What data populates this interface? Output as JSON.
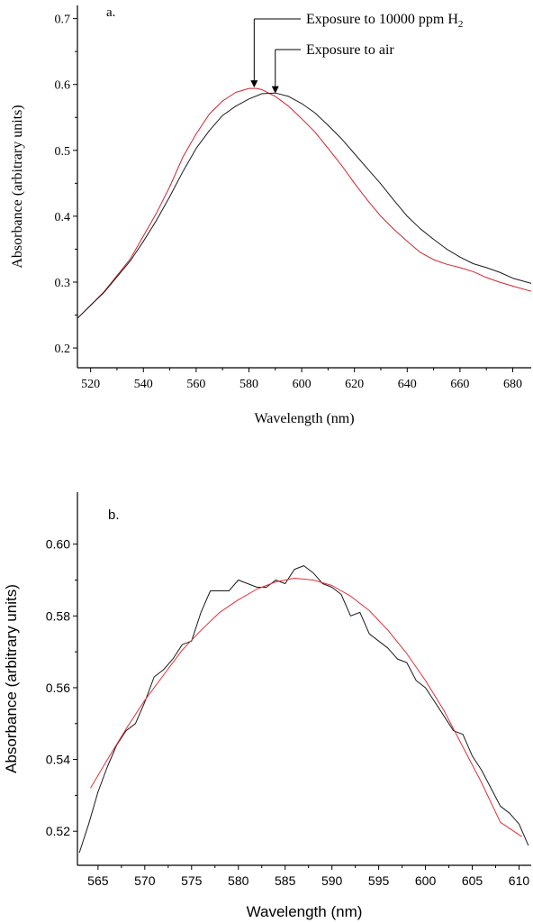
{
  "chart_data": [
    {
      "type": "line",
      "panel_label": "a.",
      "xlabel": "Wavelength (nm)",
      "ylabel": "Absorbance (arbitrary units)",
      "xlim": [
        515,
        687
      ],
      "ylim": [
        0.17,
        0.72
      ],
      "xticks": [
        520,
        540,
        560,
        580,
        600,
        620,
        640,
        660,
        680
      ],
      "yticks": [
        0.2,
        0.3,
        0.4,
        0.5,
        0.6,
        0.7
      ],
      "grid": false,
      "annotations": [
        {
          "text": "Exposure to 10000 ppm H",
          "subscript": "2",
          "arrow_x": 582,
          "arrow_y": 0.594
        },
        {
          "text": "Exposure to air",
          "arrow_x": 590,
          "arrow_y": 0.585
        }
      ],
      "series": [
        {
          "color": "#d0242e",
          "x": [
            515,
            520,
            525,
            530,
            535,
            540,
            545,
            550,
            555,
            560,
            565,
            570,
            575,
            580,
            583,
            585,
            590,
            595,
            600,
            605,
            610,
            615,
            620,
            625,
            630,
            635,
            640,
            645,
            650,
            655,
            660,
            665,
            670,
            675,
            680,
            687
          ],
          "y": [
            0.245,
            0.265,
            0.285,
            0.31,
            0.335,
            0.37,
            0.405,
            0.445,
            0.49,
            0.525,
            0.555,
            0.575,
            0.588,
            0.594,
            0.594,
            0.592,
            0.582,
            0.567,
            0.548,
            0.528,
            0.503,
            0.478,
            0.45,
            0.424,
            0.4,
            0.38,
            0.362,
            0.345,
            0.334,
            0.327,
            0.322,
            0.316,
            0.307,
            0.3,
            0.294,
            0.286
          ]
        },
        {
          "color": "#1a1a1a",
          "x": [
            515,
            520,
            525,
            530,
            535,
            540,
            545,
            550,
            555,
            560,
            565,
            570,
            575,
            580,
            585,
            590,
            595,
            600,
            605,
            610,
            615,
            620,
            625,
            630,
            635,
            640,
            645,
            650,
            655,
            660,
            665,
            670,
            675,
            680,
            687
          ],
          "y": [
            0.245,
            0.265,
            0.284,
            0.308,
            0.332,
            0.362,
            0.394,
            0.43,
            0.468,
            0.503,
            0.53,
            0.553,
            0.567,
            0.578,
            0.586,
            0.587,
            0.582,
            0.571,
            0.557,
            0.538,
            0.518,
            0.495,
            0.472,
            0.449,
            0.424,
            0.4,
            0.381,
            0.365,
            0.35,
            0.338,
            0.328,
            0.322,
            0.315,
            0.306,
            0.298
          ]
        }
      ]
    },
    {
      "type": "line",
      "panel_label": "b.",
      "xlabel": "Wavelength (nm)",
      "ylabel": "Absorbance (arbitrary units)",
      "xlim": [
        562.8,
        611.3
      ],
      "ylim": [
        0.5105,
        0.6145
      ],
      "xticks": [
        565,
        570,
        575,
        580,
        585,
        590,
        595,
        600,
        605,
        610
      ],
      "yticks": [
        0.52,
        0.54,
        0.56,
        0.58,
        0.6
      ],
      "grid": false,
      "series": [
        {
          "color": "#1a1a1a",
          "x": [
            563,
            564,
            565,
            566,
            567,
            568,
            569,
            570,
            571,
            572,
            573,
            574,
            575,
            576,
            577,
            578,
            579,
            580,
            581,
            582,
            583,
            584,
            585,
            586,
            587,
            588,
            589,
            590,
            591,
            592,
            593,
            594,
            595,
            596,
            597,
            598,
            599,
            600,
            601,
            602,
            603,
            604,
            605,
            606,
            607,
            608,
            609,
            610,
            611
          ],
          "y": [
            0.514,
            0.522,
            0.531,
            0.538,
            0.544,
            0.548,
            0.55,
            0.556,
            0.563,
            0.565,
            0.568,
            0.572,
            0.573,
            0.581,
            0.587,
            0.587,
            0.587,
            0.59,
            0.589,
            0.588,
            0.588,
            0.59,
            0.589,
            0.593,
            0.594,
            0.592,
            0.589,
            0.588,
            0.586,
            0.58,
            0.581,
            0.575,
            0.573,
            0.571,
            0.568,
            0.567,
            0.562,
            0.56,
            0.556,
            0.552,
            0.548,
            0.547,
            0.541,
            0.537,
            0.532,
            0.527,
            0.525,
            0.522,
            0.516
          ]
        },
        {
          "color": "#e0303a",
          "x": [
            564.2,
            566,
            568,
            570,
            572,
            574,
            576,
            578,
            580,
            582,
            584,
            586,
            588,
            590,
            592,
            594,
            596,
            598,
            600,
            602,
            604,
            606,
            608,
            610.3
          ],
          "y": [
            0.532,
            0.54,
            0.5485,
            0.5565,
            0.5635,
            0.5705,
            0.576,
            0.581,
            0.5845,
            0.5875,
            0.5895,
            0.5905,
            0.59,
            0.5885,
            0.5855,
            0.5815,
            0.576,
            0.5695,
            0.562,
            0.5535,
            0.5435,
            0.5335,
            0.5225,
            0.5185
          ]
        }
      ]
    }
  ]
}
